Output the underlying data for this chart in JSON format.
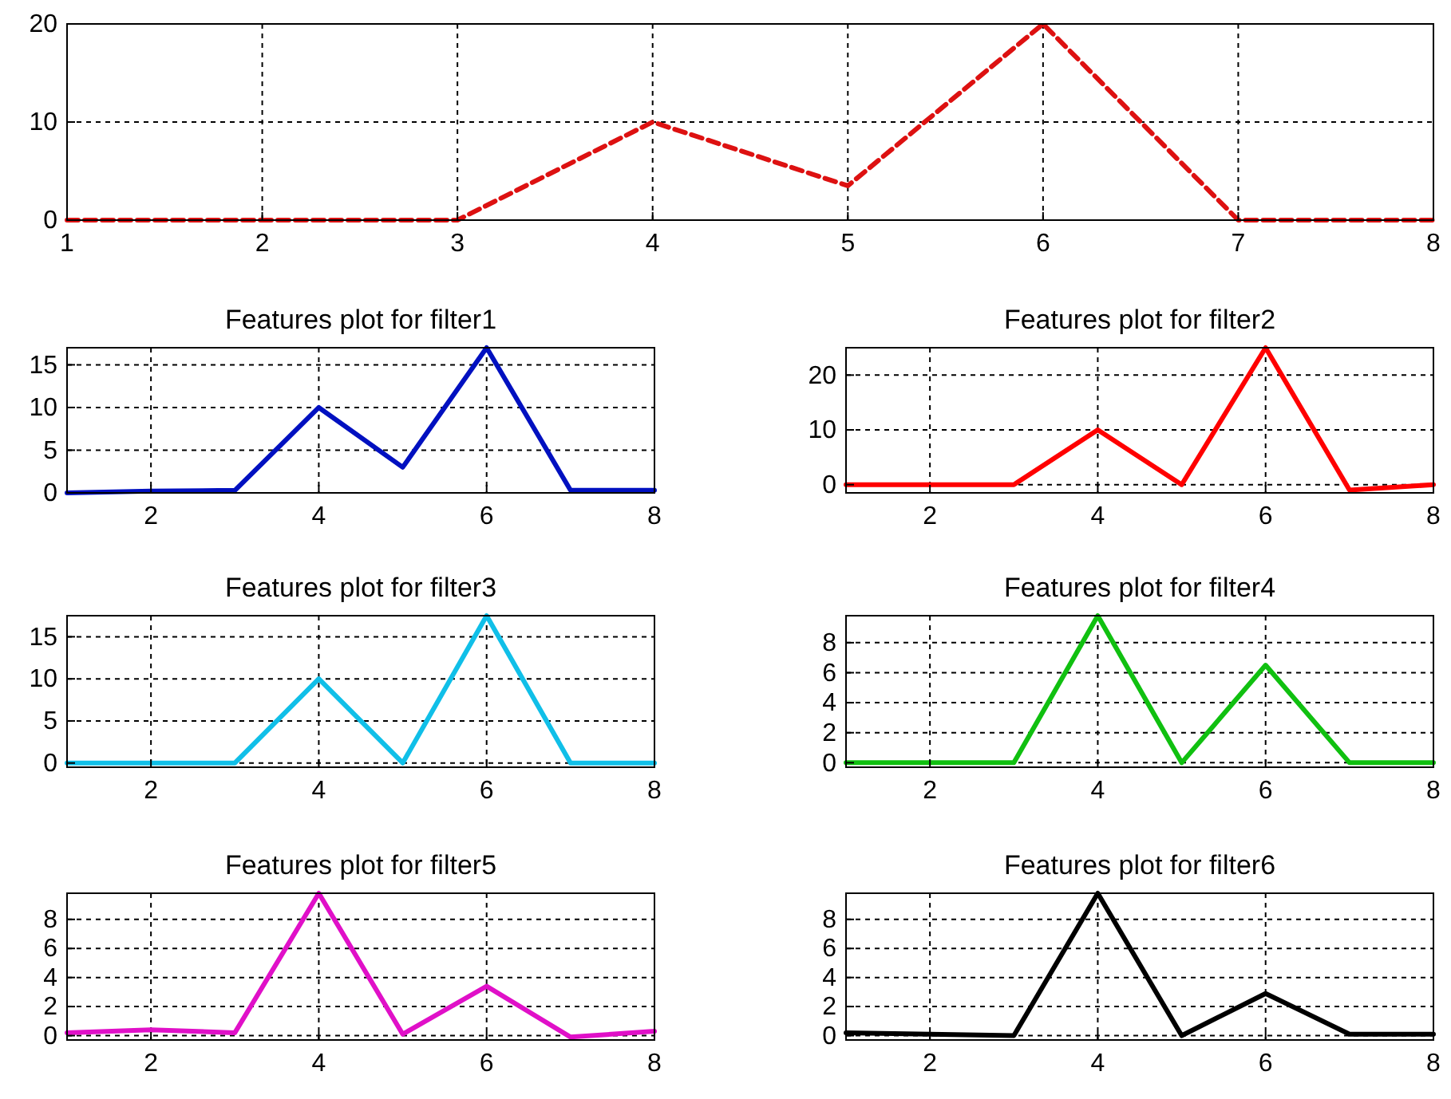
{
  "chart_data": [
    {
      "type": "line",
      "x": [
        1,
        2,
        3,
        4,
        5,
        6,
        7,
        8
      ],
      "series": [
        {
          "color": "#dd1111",
          "values": [
            0,
            0,
            0,
            10,
            3.5,
            20,
            0,
            0
          ]
        }
      ],
      "xlim": [
        1,
        8
      ],
      "ylim": [
        0,
        20
      ],
      "xticks": [
        1,
        2,
        3,
        4,
        5,
        6,
        7,
        8
      ],
      "yticks": [
        0,
        10,
        20
      ],
      "grid": true,
      "line_style": "dashed"
    },
    {
      "type": "line",
      "title": "Features plot for filter1",
      "x": [
        1,
        2,
        3,
        4,
        5,
        6,
        7,
        8
      ],
      "series": [
        {
          "color": "#0010c0",
          "values": [
            0,
            0.2,
            0.3,
            10,
            3,
            17,
            0.3,
            0.3
          ]
        }
      ],
      "xlim": [
        1,
        8
      ],
      "ylim": [
        0,
        17
      ],
      "xticks": [
        2,
        4,
        6,
        8
      ],
      "yticks": [
        0,
        5,
        10,
        15
      ],
      "grid": true,
      "line_style": "solid"
    },
    {
      "type": "line",
      "title": "Features plot for filter2",
      "x": [
        1,
        2,
        3,
        4,
        5,
        6,
        7,
        8
      ],
      "series": [
        {
          "color": "#ff0000",
          "values": [
            0,
            0,
            0,
            10,
            0,
            25,
            -1,
            0
          ]
        }
      ],
      "xlim": [
        1,
        8
      ],
      "ylim": [
        -1.5,
        25
      ],
      "xticks": [
        2,
        4,
        6,
        8
      ],
      "yticks": [
        0,
        10,
        20
      ],
      "grid": true,
      "line_style": "solid"
    },
    {
      "type": "line",
      "title": "Features plot for filter3",
      "x": [
        1,
        2,
        3,
        4,
        5,
        6,
        7,
        8
      ],
      "series": [
        {
          "color": "#10bfe8",
          "values": [
            0,
            0,
            0,
            10,
            0,
            17.5,
            0,
            0
          ]
        }
      ],
      "xlim": [
        1,
        8
      ],
      "ylim": [
        -0.5,
        17.5
      ],
      "xticks": [
        2,
        4,
        6,
        8
      ],
      "yticks": [
        0,
        5,
        10,
        15
      ],
      "grid": true,
      "line_style": "solid"
    },
    {
      "type": "line",
      "title": "Features plot for filter4",
      "x": [
        1,
        2,
        3,
        4,
        5,
        6,
        7,
        8
      ],
      "series": [
        {
          "color": "#10c010",
          "values": [
            0,
            0,
            0,
            9.8,
            0,
            6.5,
            0,
            0
          ]
        }
      ],
      "xlim": [
        1,
        8
      ],
      "ylim": [
        -0.3,
        9.8
      ],
      "xticks": [
        2,
        4,
        6,
        8
      ],
      "yticks": [
        0,
        2,
        4,
        6,
        8
      ],
      "grid": true,
      "line_style": "solid"
    },
    {
      "type": "line",
      "title": "Features plot for filter5",
      "x": [
        1,
        2,
        3,
        4,
        5,
        6,
        7,
        8
      ],
      "series": [
        {
          "color": "#e010c8",
          "values": [
            0.2,
            0.4,
            0.2,
            9.8,
            0.1,
            3.4,
            -0.1,
            0.3
          ]
        }
      ],
      "xlim": [
        1,
        8
      ],
      "ylim": [
        -0.3,
        9.8
      ],
      "xticks": [
        2,
        4,
        6,
        8
      ],
      "yticks": [
        0,
        2,
        4,
        6,
        8
      ],
      "grid": true,
      "line_style": "solid"
    },
    {
      "type": "line",
      "title": "Features plot for filter6",
      "x": [
        1,
        2,
        3,
        4,
        5,
        6,
        7,
        8
      ],
      "series": [
        {
          "color": "#000000",
          "values": [
            0.2,
            0.1,
            0,
            9.8,
            0,
            2.9,
            0.1,
            0.1
          ]
        }
      ],
      "xlim": [
        1,
        8
      ],
      "ylim": [
        -0.3,
        9.8
      ],
      "xticks": [
        2,
        4,
        6,
        8
      ],
      "yticks": [
        0,
        2,
        4,
        6,
        8
      ],
      "grid": true,
      "line_style": "solid"
    }
  ]
}
